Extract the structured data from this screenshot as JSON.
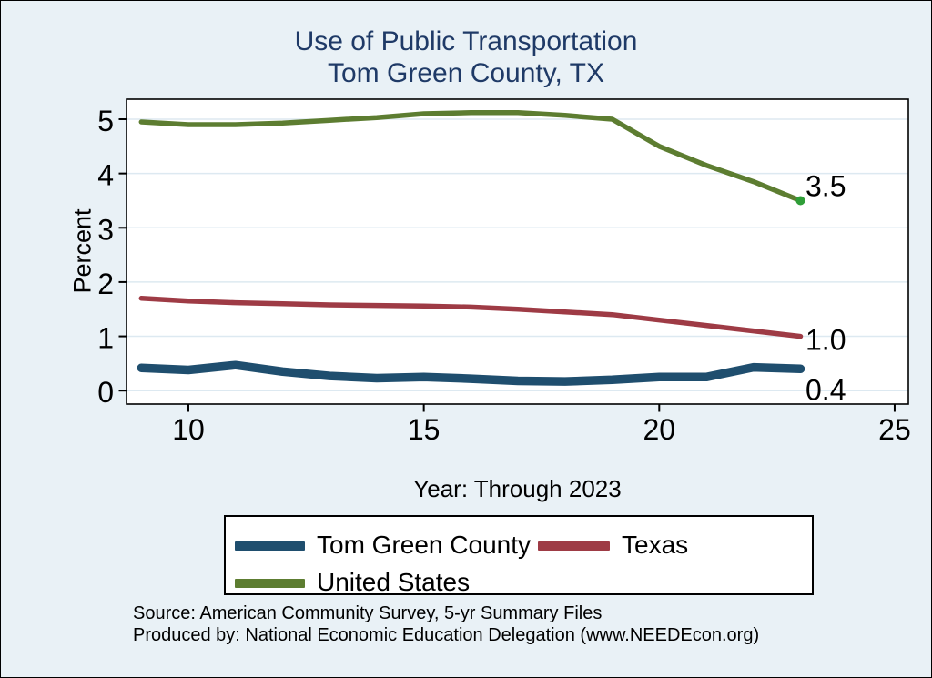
{
  "title": {
    "line1": "Use of Public Transportation",
    "line2": "Tom Green County, TX"
  },
  "axes": {
    "y_label": "Percent",
    "x_label": "Year: Through 2023"
  },
  "legend": {
    "items": [
      {
        "label": "Tom Green County",
        "color": "#1f4e6e"
      },
      {
        "label": "Texas",
        "color": "#9e3b45"
      },
      {
        "label": "United States",
        "color": "#5d7d31"
      }
    ]
  },
  "source": {
    "line1": "Source: American Community Survey, 5-yr Summary Files",
    "line2": "Produced by: National Economic Education Delegation (www.NEEDEcon.org)"
  },
  "colors": {
    "background": "#e9f1f6",
    "plot_background": "#ffffff",
    "title_navy": "#1f3a67",
    "gridline": "#dde9f1",
    "axis_black": "#000000",
    "tom_green_navy": "#1f4e6e",
    "texas_maroon": "#9e3b45",
    "us_olive": "#5d7d31",
    "end_marker_green": "#2f9e38"
  },
  "chart_data": {
    "type": "line",
    "title": "Use of Public Transportation — Tom Green County, TX",
    "xlabel": "Year: Through 2023",
    "ylabel": "Percent",
    "grid": "horizontal",
    "legend_position": "bottom",
    "x": [
      9,
      10,
      11,
      12,
      13,
      14,
      15,
      16,
      17,
      18,
      19,
      20,
      21,
      22,
      23
    ],
    "x_ticks": [
      10,
      15,
      20,
      25
    ],
    "y_ticks": [
      0,
      1,
      2,
      3,
      4,
      5
    ],
    "xlim": [
      8.4,
      25.3
    ],
    "ylim": [
      -0.25,
      5.37
    ],
    "series": [
      {
        "name": "Tom Green County",
        "color": "#1f4e6e",
        "line_width": 9.5,
        "values": [
          0.42,
          0.38,
          0.47,
          0.35,
          0.27,
          0.23,
          0.25,
          0.22,
          0.18,
          0.17,
          0.2,
          0.25,
          0.25,
          0.43,
          0.4
        ],
        "end_label": "0.4",
        "end_marker": false
      },
      {
        "name": "Texas",
        "color": "#9e3b45",
        "line_width": 5.5,
        "values": [
          1.7,
          1.65,
          1.62,
          1.6,
          1.58,
          1.57,
          1.56,
          1.54,
          1.5,
          1.45,
          1.4,
          1.3,
          1.2,
          1.1,
          1.0
        ],
        "end_label": "1.0",
        "end_marker": false
      },
      {
        "name": "United States",
        "color": "#5d7d31",
        "line_width": 5.5,
        "values": [
          4.95,
          4.9,
          4.9,
          4.93,
          4.98,
          5.03,
          5.1,
          5.12,
          5.12,
          5.07,
          5.0,
          4.5,
          4.15,
          3.85,
          3.5
        ],
        "end_label": "3.5",
        "end_marker": true,
        "marker_color": "#2f9e38"
      }
    ]
  }
}
